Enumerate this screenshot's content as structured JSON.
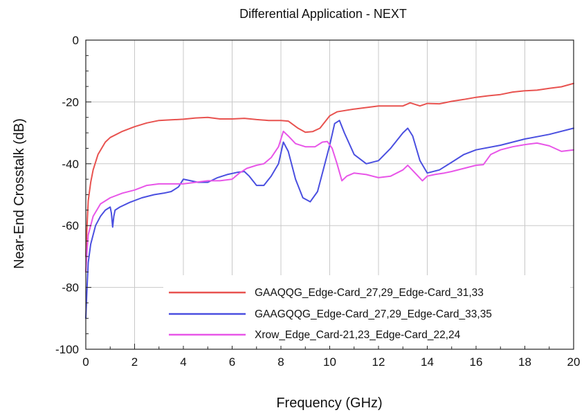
{
  "chart_data": {
    "type": "line",
    "title": "Differential Application - NEXT",
    "xlabel": "Frequency (GHz)",
    "ylabel": "Near-End Crosstalk (dB)",
    "xlim": [
      0,
      20
    ],
    "ylim": [
      -100,
      0
    ],
    "xticks": [
      "0",
      "2",
      "4",
      "6",
      "8",
      "10",
      "12",
      "14",
      "16",
      "18",
      "20"
    ],
    "yticks": [
      "-100",
      "-80",
      "-60",
      "-40",
      "-20",
      "0"
    ],
    "grid": true,
    "legend_position": "bottom-right",
    "series": [
      {
        "name": "GAAQQG_Edge-Card_27,29_Edge-Card_31,33",
        "color": "#e8524f",
        "x": [
          0,
          0.05,
          0.1,
          0.2,
          0.3,
          0.5,
          0.8,
          1,
          1.5,
          2,
          2.5,
          3,
          3.5,
          4,
          4.5,
          5,
          5.5,
          6,
          6.5,
          7,
          7.5,
          8,
          8.3,
          8.7,
          9,
          9.3,
          9.6,
          10,
          10.3,
          11,
          12,
          13,
          13.3,
          13.7,
          14,
          14.5,
          15,
          15.5,
          16,
          16.5,
          17,
          17.5,
          18,
          18.5,
          19,
          19.5,
          20
        ],
        "y": [
          -70,
          -60,
          -52,
          -46,
          -42,
          -37,
          -33,
          -31.5,
          -29.5,
          -28,
          -26.8,
          -26,
          -25.8,
          -25.6,
          -25.2,
          -25,
          -25.5,
          -25.5,
          -25.3,
          -25.7,
          -26,
          -26,
          -26.2,
          -28.5,
          -29.8,
          -29.6,
          -28.5,
          -24.5,
          -23.2,
          -22.3,
          -21.3,
          -21.3,
          -20.3,
          -21.3,
          -20.5,
          -20.6,
          -19.8,
          -19.2,
          -18.5,
          -18,
          -17.6,
          -16.8,
          -16.4,
          -16.2,
          -15.6,
          -15.1,
          -14
        ]
      },
      {
        "name": "GAAGQQG_Edge-Card_27,29_Edge-Card_33,35",
        "color": "#4a4fe0",
        "x": [
          0,
          0.05,
          0.1,
          0.2,
          0.4,
          0.6,
          0.8,
          1,
          1.05,
          1.1,
          1.15,
          1.2,
          1.4,
          1.8,
          2.3,
          2.8,
          3.2,
          3.5,
          3.8,
          4,
          4.3,
          4.6,
          5,
          5.4,
          5.8,
          6.2,
          6.5,
          6.7,
          7,
          7.3,
          7.6,
          7.9,
          8.1,
          8.3,
          8.6,
          8.9,
          9.2,
          9.5,
          9.8,
          10,
          10.2,
          10.4,
          10.6,
          11,
          11.5,
          12,
          12.5,
          13,
          13.2,
          13.4,
          13.7,
          14,
          14.5,
          15,
          15.5,
          16,
          17,
          18,
          19,
          20
        ],
        "y": [
          -90,
          -80,
          -72,
          -66,
          -60,
          -57,
          -55,
          -54,
          -56,
          -60.5,
          -57,
          -55,
          -54,
          -52.5,
          -51,
          -50,
          -49.5,
          -49,
          -47.5,
          -45,
          -45.5,
          -46,
          -46,
          -44.5,
          -43.5,
          -42.8,
          -42.5,
          -44,
          -47,
          -47,
          -44,
          -40,
          -33,
          -36,
          -45,
          -51,
          -52.3,
          -49,
          -40,
          -34,
          -27,
          -26,
          -30,
          -37,
          -40,
          -39,
          -35,
          -30,
          -28.5,
          -31,
          -39,
          -43,
          -42,
          -39.5,
          -37,
          -35.5,
          -34,
          -32,
          -30.5,
          -28.5
        ]
      },
      {
        "name": "Xrow_Edge_Card-21,23_Edge-Card_22,24",
        "color": "#e855e8",
        "x": [
          0,
          0.05,
          0.1,
          0.3,
          0.6,
          1,
          1.5,
          2,
          2.5,
          3,
          3.5,
          4,
          4.5,
          5,
          5.5,
          6,
          6.3,
          6.6,
          7,
          7.3,
          7.6,
          7.9,
          8.1,
          8.3,
          8.6,
          9,
          9.4,
          9.7,
          9.9,
          10.1,
          10.3,
          10.5,
          10.7,
          11,
          11.5,
          12,
          12.5,
          13,
          13.2,
          13.5,
          13.8,
          14,
          14.3,
          14.7,
          15,
          15.5,
          16,
          16.3,
          16.6,
          17,
          17.5,
          18,
          18.5,
          19,
          19.5,
          20
        ],
        "y": [
          -75,
          -68,
          -63,
          -57,
          -53,
          -51,
          -49.5,
          -48.5,
          -47,
          -46.5,
          -46.5,
          -46.5,
          -46,
          -45.5,
          -45.5,
          -45,
          -43,
          -41.5,
          -40.5,
          -40,
          -38,
          -34.5,
          -29.5,
          -31,
          -33.5,
          -34.5,
          -34.5,
          -33,
          -32.8,
          -35,
          -40,
          -45.5,
          -44,
          -43,
          -43.5,
          -44.5,
          -44,
          -42,
          -40.5,
          -43,
          -45.5,
          -44,
          -43.5,
          -43,
          -42.5,
          -41.5,
          -40.5,
          -40.3,
          -37,
          -35.5,
          -34.5,
          -33.8,
          -33.3,
          -34.2,
          -36,
          -35.5
        ]
      }
    ]
  }
}
